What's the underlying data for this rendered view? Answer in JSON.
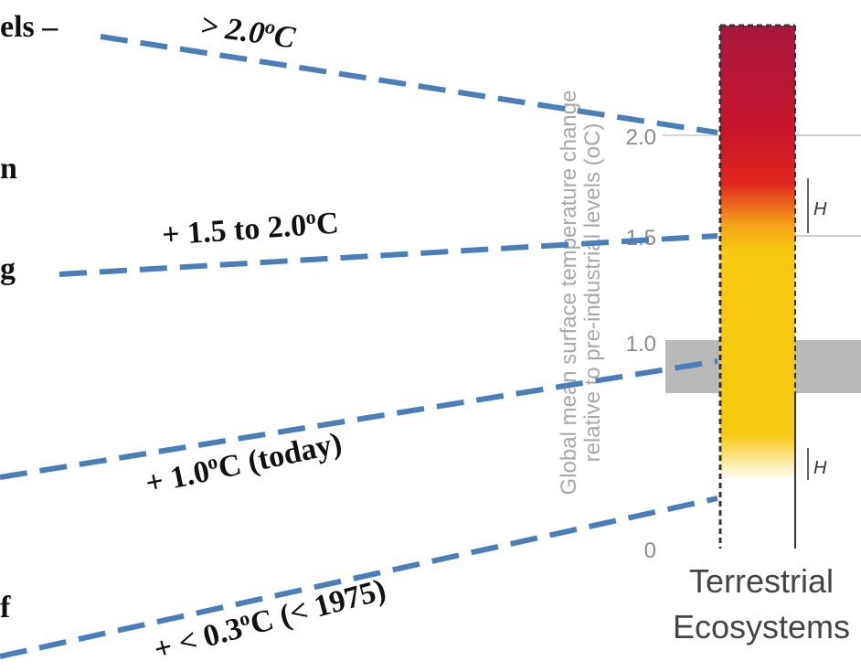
{
  "left_text": [
    "els –",
    "n",
    "g",
    "f"
  ],
  "annotations": [
    {
      "prefix": "> 2.0",
      "sup": "o",
      "suffix": "C"
    },
    {
      "prefix": "+ 1.5 to 2.0",
      "sup": "o",
      "suffix": "C"
    },
    {
      "prefix": "+ 1.0",
      "sup": "o",
      "suffix": "C (today)"
    },
    {
      "prefix": "+ < 0.3",
      "sup": "o",
      "suffix": "C (< 1975)"
    }
  ],
  "axis": {
    "title_lines": [
      "Global mean surface temperature change",
      "relative to pre-industrial levels (oC)"
    ],
    "ticks": [
      "2.0",
      "1.5",
      "1.0",
      "0"
    ]
  },
  "bar": {
    "markers": [
      "H",
      "H"
    ],
    "label_lines": [
      "Terrestrial",
      "Ecosystems"
    ]
  }
}
